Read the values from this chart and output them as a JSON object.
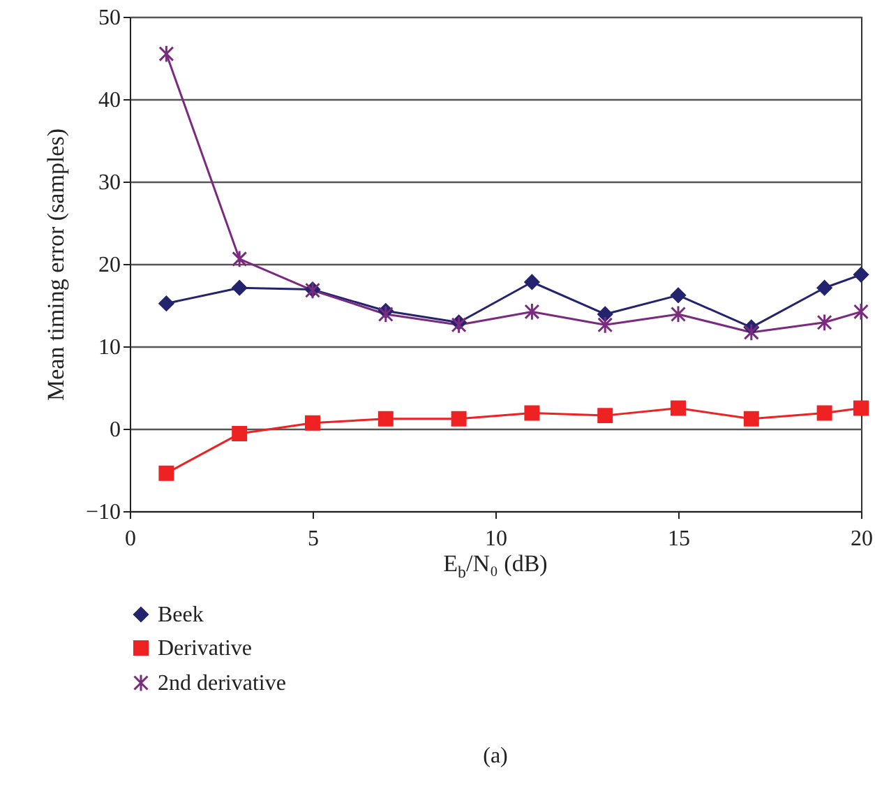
{
  "chart_data": {
    "type": "line",
    "xlabel": "E$_{b}$/N₀ (dB)",
    "ylabel": "Mean timing error (samples)",
    "x": [
      1,
      3,
      5,
      7,
      9,
      11,
      13,
      15,
      17,
      19,
      20
    ],
    "series": [
      {
        "name": "Beek",
        "color": "#23236e",
        "marker": "diamond",
        "values": [
          15.2,
          17.1,
          16.9,
          14.3,
          12.9,
          17.8,
          13.9,
          16.2,
          12.3,
          17.1,
          18.7
        ]
      },
      {
        "name": "Derivative",
        "color": "#ee2222",
        "marker": "square",
        "values": [
          -5.4,
          -0.6,
          0.7,
          1.2,
          1.2,
          1.9,
          1.6,
          2.5,
          1.2,
          1.9,
          2.5
        ]
      },
      {
        "name": "2nd derivative",
        "color": "#7a2a7f",
        "marker": "cross",
        "values": [
          45.5,
          20.6,
          16.8,
          13.9,
          12.6,
          14.2,
          12.6,
          13.9,
          11.7,
          12.9,
          14.2
        ]
      }
    ],
    "xlim": [
      0,
      20
    ],
    "xticks": [
      0,
      5,
      10,
      15,
      20
    ],
    "ylim": [
      -10,
      50
    ],
    "yticks": [
      -10,
      0,
      10,
      20,
      30,
      40,
      50
    ],
    "grid": "y",
    "legend": "bottom left",
    "annotations": [
      "(a)"
    ]
  }
}
